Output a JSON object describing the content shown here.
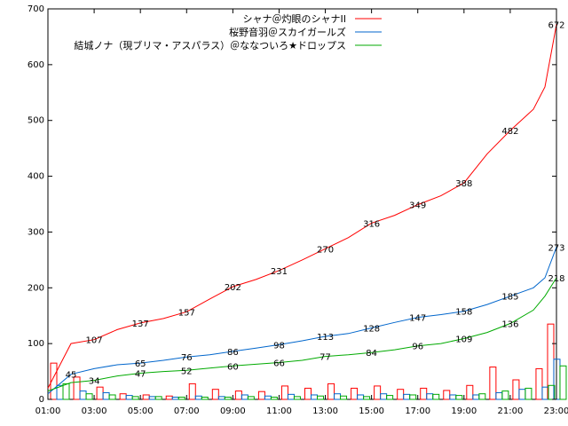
{
  "chart_data": {
    "type": "line",
    "ylim": [
      0,
      700
    ],
    "xlim": [
      "01:00",
      "23:00"
    ],
    "yticks": [
      "0",
      "100",
      "200",
      "300",
      "400",
      "500",
      "600",
      "700"
    ],
    "xticks": [
      "01:00",
      "03:00",
      "05:00",
      "07:00",
      "09:00",
      "11:00",
      "13:00",
      "15:00",
      "17:00",
      "19:00",
      "21:00",
      "23:00"
    ],
    "grid": false,
    "legend_position": "top-right",
    "series": [
      {
        "name": "シャナ＠灼眼のシャナII",
        "color": "#ff0000",
        "x": [
          "01:00",
          "02:00",
          "03:00",
          "04:00",
          "05:00",
          "06:00",
          "07:00",
          "08:00",
          "09:00",
          "10:00",
          "11:00",
          "12:00",
          "13:00",
          "14:00",
          "15:00",
          "16:00",
          "17:00",
          "18:00",
          "19:00",
          "20:00",
          "21:00",
          "22:00",
          "22:30",
          "23:00"
        ],
        "values": [
          20,
          100,
          107,
          125,
          137,
          145,
          157,
          180,
          202,
          215,
          231,
          250,
          270,
          290,
          316,
          330,
          349,
          365,
          388,
          440,
          482,
          520,
          560,
          672
        ],
        "labels": [
          null,
          null,
          "107",
          null,
          "137",
          null,
          "157",
          null,
          "202",
          null,
          "231",
          null,
          "270",
          null,
          "316",
          null,
          "349",
          null,
          "388",
          null,
          "482",
          null,
          null,
          "672"
        ]
      },
      {
        "name": "桜野音羽＠スカイガールズ",
        "color": "#0066cc",
        "x": [
          "01:00",
          "02:00",
          "03:00",
          "04:00",
          "05:00",
          "06:00",
          "07:00",
          "08:00",
          "09:00",
          "10:00",
          "11:00",
          "12:00",
          "13:00",
          "14:00",
          "15:00",
          "16:00",
          "17:00",
          "18:00",
          "19:00",
          "20:00",
          "21:00",
          "22:00",
          "22:30",
          "23:00"
        ],
        "values": [
          10,
          45,
          55,
          62,
          65,
          70,
          76,
          80,
          86,
          92,
          98,
          105,
          113,
          118,
          128,
          138,
          147,
          152,
          158,
          170,
          185,
          200,
          218,
          273
        ],
        "labels": [
          null,
          "45",
          null,
          null,
          "65",
          null,
          "76",
          null,
          "86",
          null,
          "98",
          null,
          "113",
          null,
          "128",
          null,
          "147",
          null,
          "158",
          null,
          "185",
          null,
          null,
          "273"
        ]
      },
      {
        "name": "結城ノナ（現ブリマ・アスパラス）＠ななついろ★ドロップス",
        "color": "#00aa00",
        "x": [
          "01:00",
          "02:00",
          "03:00",
          "04:00",
          "05:00",
          "06:00",
          "07:00",
          "08:00",
          "09:00",
          "10:00",
          "11:00",
          "12:00",
          "13:00",
          "14:00",
          "15:00",
          "16:00",
          "17:00",
          "18:00",
          "19:00",
          "20:00",
          "21:00",
          "22:00",
          "22:30",
          "23:00"
        ],
        "values": [
          15,
          30,
          34,
          42,
          47,
          50,
          52,
          56,
          60,
          63,
          66,
          70,
          77,
          80,
          84,
          89,
          96,
          100,
          109,
          120,
          136,
          160,
          185,
          218
        ],
        "labels": [
          null,
          null,
          "34",
          null,
          "47",
          null,
          "52",
          null,
          "60",
          null,
          "66",
          null,
          "77",
          null,
          "84",
          null,
          "96",
          null,
          "109",
          null,
          "136",
          null,
          null,
          "218"
        ]
      }
    ],
    "hourly_bars": {
      "x": [
        "01:00",
        "02:00",
        "03:00",
        "04:00",
        "05:00",
        "06:00",
        "07:00",
        "08:00",
        "09:00",
        "10:00",
        "11:00",
        "12:00",
        "13:00",
        "14:00",
        "15:00",
        "16:00",
        "17:00",
        "18:00",
        "19:00",
        "20:00",
        "21:00",
        "22:00",
        "22:30"
      ],
      "series": [
        {
          "color": "#ff0000",
          "values": [
            65,
            40,
            22,
            10,
            8,
            6,
            28,
            18,
            15,
            14,
            24,
            20,
            28,
            20,
            24,
            18,
            20,
            16,
            25,
            58,
            35,
            55,
            135
          ]
        },
        {
          "color": "#0066cc",
          "values": [
            25,
            15,
            12,
            7,
            5,
            4,
            6,
            5,
            8,
            6,
            9,
            8,
            10,
            8,
            10,
            9,
            10,
            8,
            8,
            12,
            18,
            22,
            72
          ]
        },
        {
          "color": "#00aa00",
          "values": [
            28,
            10,
            8,
            5,
            5,
            4,
            4,
            4,
            5,
            4,
            5,
            6,
            6,
            5,
            7,
            8,
            9,
            7,
            10,
            15,
            20,
            25,
            60
          ]
        }
      ]
    }
  }
}
